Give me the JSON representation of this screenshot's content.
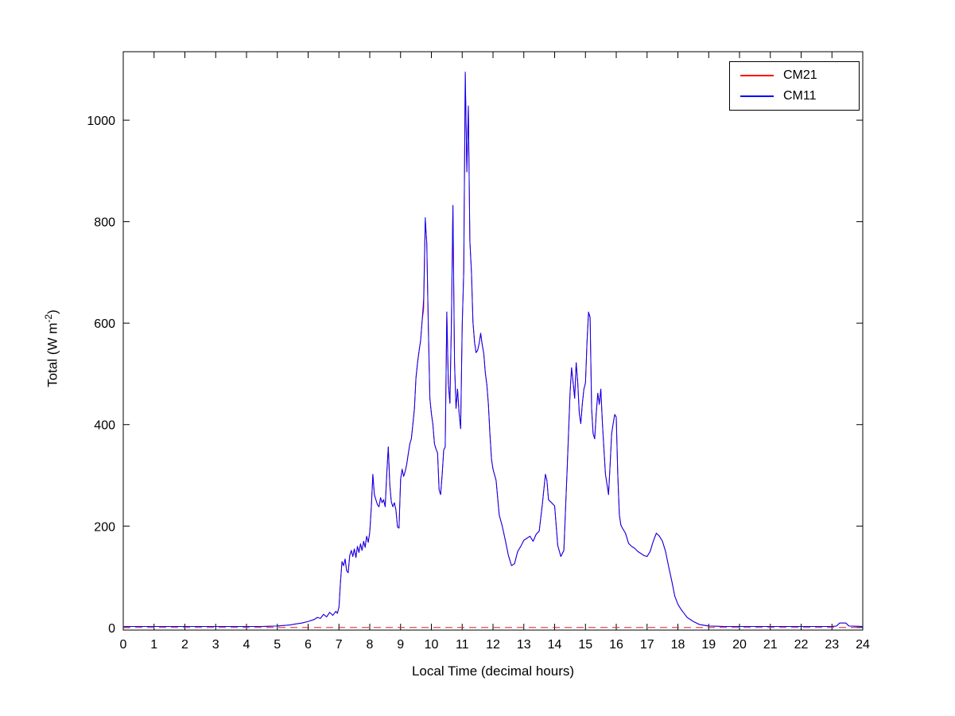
{
  "chart_data": {
    "type": "line",
    "title": "",
    "xlabel": "Local Time (decimal hours)",
    "ylabel": "Total (W m^-2)",
    "ylabel_main": "Total (W m",
    "ylabel_sup": "-2",
    "ylabel_close": ")",
    "xlim": [
      0,
      24
    ],
    "ylim": [
      -5,
      1135
    ],
    "xticks": [
      0,
      1,
      2,
      3,
      4,
      5,
      6,
      7,
      8,
      9,
      10,
      11,
      12,
      13,
      14,
      15,
      16,
      17,
      18,
      19,
      20,
      21,
      22,
      23,
      24
    ],
    "yticks": [
      0,
      200,
      400,
      600,
      800,
      1000
    ],
    "grid": false,
    "legend_position": "top-right",
    "reference_line": {
      "y": 0,
      "style": "dashed",
      "color": "#dd2222"
    },
    "x": [
      0,
      0.5,
      1,
      1.5,
      2,
      2.5,
      3,
      3.5,
      4,
      4.5,
      5,
      5.2,
      5.4,
      5.6,
      5.8,
      6,
      6.1,
      6.2,
      6.3,
      6.4,
      6.5,
      6.6,
      6.7,
      6.8,
      6.9,
      6.95,
      7,
      7.05,
      7.1,
      7.15,
      7.2,
      7.25,
      7.3,
      7.35,
      7.4,
      7.45,
      7.5,
      7.55,
      7.6,
      7.65,
      7.7,
      7.75,
      7.8,
      7.85,
      7.9,
      7.95,
      8,
      8.05,
      8.1,
      8.15,
      8.2,
      8.25,
      8.3,
      8.35,
      8.4,
      8.45,
      8.5,
      8.55,
      8.6,
      8.65,
      8.7,
      8.75,
      8.8,
      8.85,
      8.9,
      8.95,
      9,
      9.05,
      9.1,
      9.15,
      9.2,
      9.25,
      9.3,
      9.35,
      9.4,
      9.45,
      9.5,
      9.55,
      9.6,
      9.65,
      9.7,
      9.75,
      9.8,
      9.85,
      9.9,
      9.95,
      10,
      10.05,
      10.1,
      10.15,
      10.2,
      10.25,
      10.3,
      10.35,
      10.4,
      10.45,
      10.5,
      10.55,
      10.6,
      10.65,
      10.7,
      10.75,
      10.8,
      10.85,
      10.9,
      10.95,
      11,
      11.05,
      11.1,
      11.15,
      11.2,
      11.25,
      11.3,
      11.35,
      11.4,
      11.45,
      11.5,
      11.55,
      11.6,
      11.65,
      11.7,
      11.75,
      11.8,
      11.85,
      11.9,
      11.95,
      12,
      12.1,
      12.2,
      12.3,
      12.4,
      12.5,
      12.6,
      12.7,
      12.8,
      12.9,
      13,
      13.1,
      13.2,
      13.3,
      13.4,
      13.5,
      13.6,
      13.7,
      13.75,
      13.8,
      13.9,
      14,
      14.1,
      14.2,
      14.3,
      14.4,
      14.5,
      14.55,
      14.6,
      14.65,
      14.7,
      14.75,
      14.8,
      14.85,
      14.9,
      14.95,
      15,
      15.05,
      15.1,
      15.15,
      15.2,
      15.25,
      15.3,
      15.35,
      15.4,
      15.45,
      15.5,
      15.55,
      15.6,
      15.65,
      15.7,
      15.75,
      15.8,
      15.85,
      15.9,
      15.95,
      16,
      16.05,
      16.1,
      16.15,
      16.2,
      16.3,
      16.4,
      16.5,
      16.6,
      16.7,
      16.8,
      16.9,
      17,
      17.1,
      17.2,
      17.3,
      17.4,
      17.5,
      17.6,
      17.7,
      17.8,
      17.9,
      18,
      18.1,
      18.2,
      18.3,
      18.5,
      18.7,
      19,
      19.5,
      20,
      20.5,
      21,
      21.5,
      22,
      22.5,
      23,
      23.15,
      23.25,
      23.45,
      23.55,
      24
    ],
    "series": [
      {
        "name": "CM21",
        "color": "#ff0000",
        "values": [
          2,
          2,
          2,
          2,
          2,
          2,
          2,
          2,
          2,
          2,
          3,
          4,
          5,
          7,
          9,
          12,
          14,
          16,
          20,
          18,
          26,
          21,
          30,
          24,
          32,
          28,
          40,
          90,
          130,
          122,
          135,
          112,
          108,
          142,
          152,
          140,
          155,
          138,
          160,
          148,
          165,
          152,
          170,
          158,
          180,
          168,
          188,
          235,
          302,
          262,
          252,
          242,
          238,
          256,
          246,
          252,
          238,
          300,
          356,
          282,
          248,
          238,
          246,
          232,
          198,
          196,
          292,
          312,
          298,
          308,
          322,
          342,
          362,
          372,
          402,
          432,
          492,
          522,
          545,
          565,
          605,
          628,
          800,
          758,
          598,
          452,
          422,
          400,
          362,
          352,
          344,
          272,
          262,
          302,
          350,
          356,
          622,
          482,
          442,
          602,
          832,
          522,
          432,
          470,
          422,
          392,
          598,
          702,
          1092,
          898,
          1028,
          762,
          700,
          602,
          562,
          542,
          546,
          560,
          580,
          558,
          540,
          502,
          478,
          440,
          382,
          332,
          312,
          290,
          222,
          200,
          172,
          142,
          122,
          126,
          150,
          160,
          172,
          176,
          180,
          170,
          184,
          190,
          242,
          302,
          290,
          252,
          246,
          240,
          162,
          140,
          152,
          302,
          462,
          512,
          482,
          452,
          522,
          482,
          422,
          402,
          442,
          470,
          482,
          562,
          618,
          612,
          432,
          382,
          372,
          422,
          462,
          440,
          470,
          402,
          352,
          302,
          282,
          262,
          322,
          382,
          402,
          420,
          415,
          302,
          222,
          202,
          196,
          186,
          166,
          160,
          156,
          150,
          146,
          142,
          140,
          150,
          170,
          186,
          180,
          170,
          150,
          120,
          92,
          62,
          46,
          36,
          28,
          20,
          12,
          6,
          3,
          2,
          2,
          2,
          2,
          2,
          2,
          2,
          2,
          3,
          9,
          9,
          3,
          2
        ]
      },
      {
        "name": "CM11",
        "color": "#0000ff",
        "values": [
          2,
          2,
          2,
          2,
          2,
          2,
          2,
          2,
          2,
          2,
          3,
          4,
          5,
          7,
          9,
          12,
          14,
          16,
          20,
          18,
          26,
          21,
          30,
          24,
          32,
          28,
          40,
          90,
          130,
          122,
          135,
          112,
          108,
          142,
          152,
          140,
          155,
          138,
          160,
          148,
          165,
          152,
          170,
          158,
          180,
          168,
          188,
          235,
          302,
          262,
          252,
          242,
          238,
          256,
          246,
          252,
          238,
          300,
          356,
          282,
          248,
          238,
          246,
          232,
          198,
          196,
          292,
          312,
          298,
          308,
          322,
          342,
          362,
          372,
          402,
          432,
          492,
          522,
          545,
          565,
          605,
          648,
          808,
          758,
          598,
          452,
          422,
          400,
          362,
          352,
          344,
          272,
          262,
          302,
          350,
          356,
          622,
          482,
          442,
          602,
          832,
          522,
          432,
          470,
          422,
          392,
          598,
          702,
          1095,
          898,
          1028,
          762,
          700,
          602,
          562,
          542,
          546,
          560,
          580,
          558,
          540,
          502,
          478,
          440,
          382,
          332,
          312,
          290,
          222,
          200,
          172,
          142,
          122,
          126,
          150,
          160,
          172,
          176,
          180,
          170,
          184,
          190,
          242,
          302,
          290,
          252,
          246,
          240,
          162,
          140,
          152,
          302,
          462,
          512,
          482,
          452,
          522,
          482,
          422,
          402,
          442,
          470,
          482,
          562,
          622,
          612,
          432,
          382,
          372,
          422,
          462,
          440,
          470,
          402,
          352,
          302,
          282,
          262,
          322,
          382,
          402,
          420,
          415,
          302,
          222,
          202,
          196,
          186,
          166,
          160,
          156,
          150,
          146,
          142,
          140,
          150,
          170,
          186,
          180,
          170,
          150,
          120,
          92,
          62,
          46,
          36,
          28,
          20,
          12,
          6,
          3,
          2,
          2,
          2,
          2,
          2,
          2,
          2,
          2,
          3,
          9,
          9,
          3,
          2
        ]
      }
    ]
  }
}
